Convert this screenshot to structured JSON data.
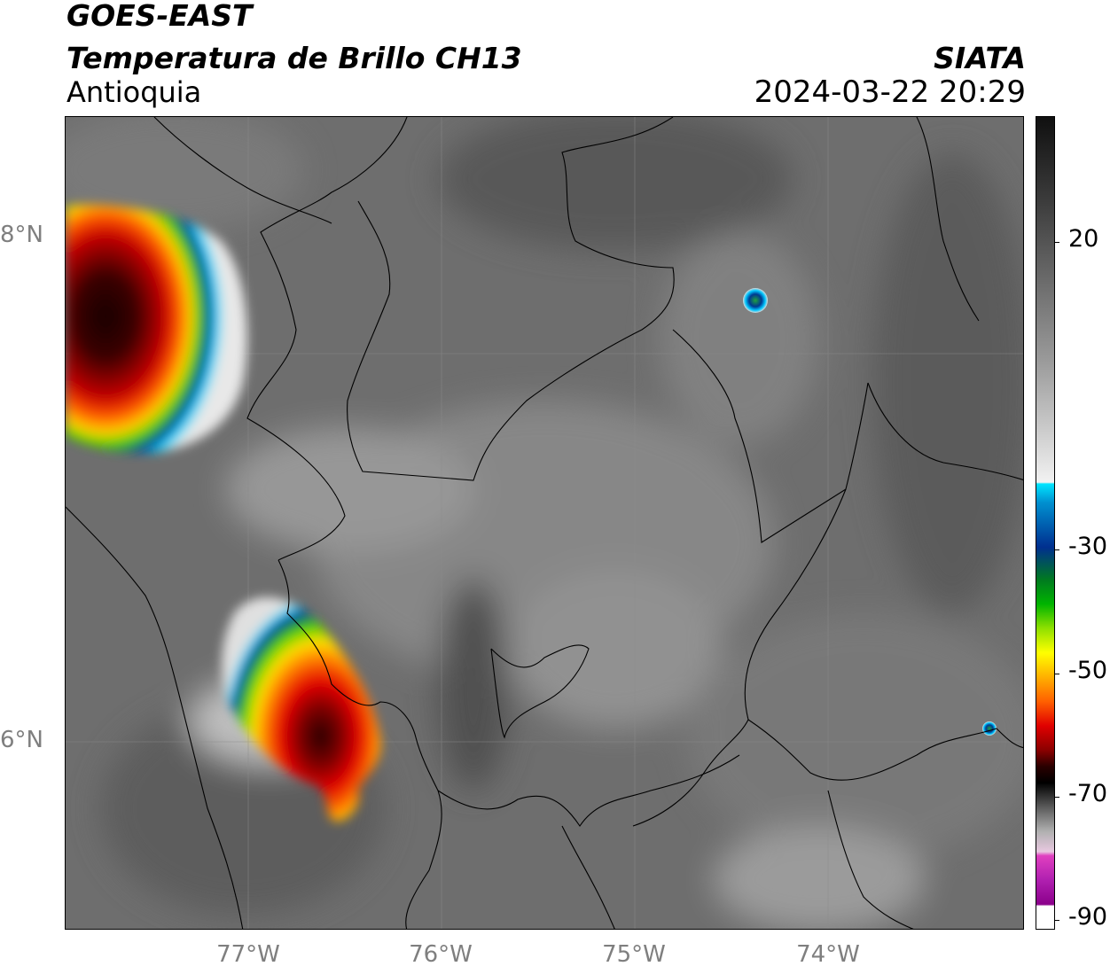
{
  "header": {
    "satellite": "GOES-EAST",
    "product": "Temperatura de Brillo CH13",
    "region": "Antioquia",
    "agency": "SIATA",
    "datetime": "2024-03-22 20:29"
  },
  "axes": {
    "lat_labels": [
      "8°N",
      "6°N"
    ],
    "lon_labels": [
      "77°W",
      "76°W",
      "75°W",
      "74°W"
    ]
  },
  "colorbar": {
    "ticks": [
      "20",
      "-30",
      "-50",
      "-70",
      "-90"
    ],
    "colors": {
      "warm_gray_top": "#101010",
      "white": "#f2f2f2",
      "cyan": "#00e5ff",
      "blue": "#002f8f",
      "green": "#00b400",
      "yellow": "#ffff00",
      "orange": "#ff8c00",
      "red": "#d40000",
      "dark_red": "#3a0000",
      "black": "#000000",
      "pink": "#e040c0",
      "purple": "#8b008b"
    }
  }
}
